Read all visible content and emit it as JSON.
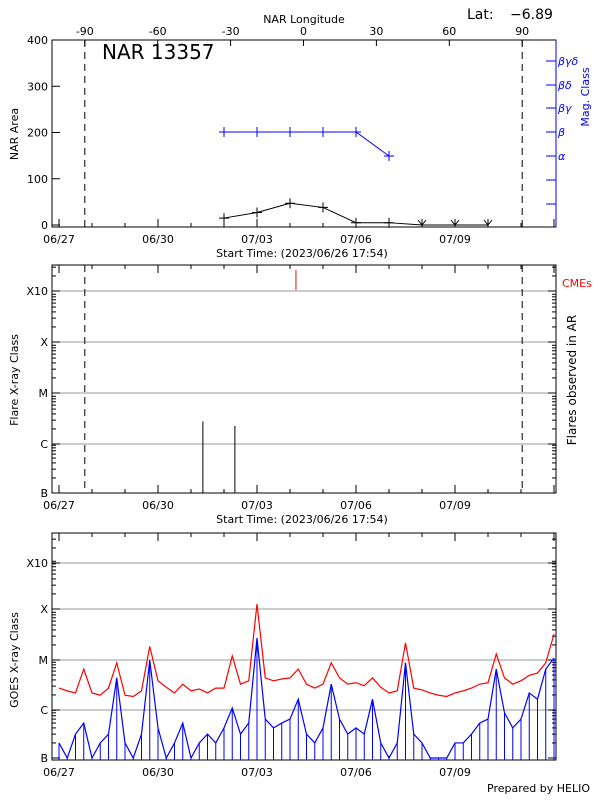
{
  "chart_data": [
    {
      "type": "line",
      "title": "NAR 13357",
      "lat_label": "Lat:",
      "lat_value": "−6.89",
      "top_axis_label": "NAR Longitude",
      "top_ticks": [
        "-90",
        "-60",
        "-30",
        "0",
        "30",
        "60",
        "90"
      ],
      "top_tick_values": [
        -90,
        -60,
        -30,
        0,
        30,
        60,
        90
      ],
      "xlabel": "Start Time: (2023/06/26 17:54)",
      "x_tick_labels": [
        "06/27",
        "06/30",
        "07/03",
        "07/06",
        "07/09"
      ],
      "x_tick_days": [
        0,
        3,
        6,
        9,
        12
      ],
      "ylabel": "NAR Area",
      "ylim": [
        0,
        400
      ],
      "y_ticks": [
        "0",
        "100",
        "200",
        "300",
        "400"
      ],
      "y2label": "Mag. Class",
      "y2_ticks": [
        "α",
        "β",
        "βγ",
        "βδ",
        "βγδ"
      ],
      "limb_longitudes": [
        -90,
        90
      ],
      "series": [
        {
          "kind": "area",
          "color": "#000000",
          "days": [
            5,
            6,
            7,
            8,
            9,
            10,
            11,
            12,
            13
          ],
          "values": [
            15,
            27,
            47,
            38,
            5,
            5,
            0,
            0,
            0
          ]
        },
        {
          "kind": "mag_class",
          "color": "#0000ff",
          "days": [
            5,
            6,
            7,
            8,
            9,
            10
          ],
          "values": [
            "β",
            "β",
            "β",
            "β",
            "β",
            "α"
          ]
        }
      ]
    },
    {
      "type": "bar",
      "xlabel": "Start Time: (2023/06/26 17:54)",
      "x_tick_labels": [
        "06/27",
        "06/30",
        "07/03",
        "07/06",
        "07/09"
      ],
      "ylabel": "Flare X-ray Class",
      "y2label": "Flares observed in AR",
      "y_ticks": [
        "B",
        "C",
        "M",
        "X",
        "X10"
      ],
      "cme_label": "CMEs",
      "flares": [
        {
          "day": 4.36,
          "class": "C2.7"
        },
        {
          "day": 5.33,
          "class": "C2.2"
        }
      ],
      "cmes": [
        {
          "day": 7.18
        }
      ],
      "colors": {
        "flare": "#000000",
        "cme": "#ff0000"
      }
    },
    {
      "type": "line",
      "ylabel": "GOES X-ray Class",
      "x_tick_labels": [
        "06/27",
        "06/30",
        "07/03",
        "07/06",
        "07/09"
      ],
      "y_ticks": [
        "B",
        "C",
        "M",
        "X",
        "X10"
      ],
      "sample_hours": 6,
      "series": [
        {
          "color": "#ff0000",
          "values_c_class": [
            2.5,
            2.2,
            2.0,
            6.0,
            2.0,
            1.8,
            2.5,
            8.0,
            1.8,
            1.7,
            2.2,
            17,
            3.5,
            2.6,
            2.0,
            3.0,
            2.2,
            2.4,
            2.0,
            2.5,
            2.5,
            11,
            3.0,
            3.5,
            120,
            4.0,
            3.5,
            3.8,
            4.0,
            6.0,
            3.0,
            2.5,
            3.0,
            8.0,
            4.0,
            3.0,
            3.2,
            2.8,
            4.0,
            2.6,
            2.0,
            2.2,
            20,
            2.5,
            2.3,
            2.0,
            1.8,
            1.7,
            2.0,
            2.2,
            2.5,
            3.0,
            3.2,
            12,
            4.0,
            3.0,
            3.5,
            4.5,
            5.0,
            8.0,
            30
          ]
        },
        {
          "color": "#0000ff",
          "values_c_class": [
            0.2,
            0.1,
            0.3,
            0.5,
            0.1,
            0.2,
            0.3,
            4.0,
            0.2,
            0.1,
            0.3,
            9.0,
            0.4,
            0.1,
            0.2,
            0.5,
            0.1,
            0.2,
            0.3,
            0.2,
            0.4,
            1.0,
            0.3,
            0.5,
            25,
            0.6,
            0.4,
            0.5,
            0.6,
            1.5,
            0.3,
            0.2,
            0.4,
            3.0,
            0.6,
            0.3,
            0.4,
            0.3,
            1.5,
            0.2,
            0.1,
            0.2,
            8.0,
            0.3,
            0.2,
            0.1,
            0.1,
            0.1,
            0.2,
            0.2,
            0.3,
            0.5,
            0.6,
            6.0,
            0.8,
            0.4,
            0.6,
            2.0,
            1.5,
            6.0,
            10
          ]
        }
      ]
    }
  ],
  "footer": "Prepared by HELIO"
}
